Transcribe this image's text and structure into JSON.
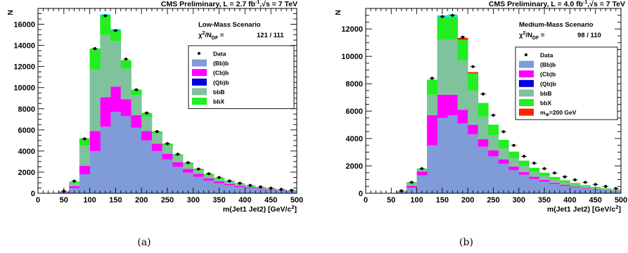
{
  "chart_data": [
    {
      "type": "bar",
      "stacked": true,
      "panel_caption": "(a)",
      "header": "CMS Preliminary, L = 2.7  fb",
      "header_sup": "-1",
      "header_rest": ",√s = 7 TeV",
      "scenario": "Low-Mass Scenario",
      "chi2_label": "χ",
      "chi2_sup": "2",
      "chi2_slash": "/N",
      "chi2_sub": "DF",
      "chi2_eq": " =",
      "chi2_value": "121 / 111",
      "ylabel": "N",
      "xlabel": "m(Jet1 Jet2) [GeV/c",
      "xlabel_sup": "2",
      "xlabel_end": "]",
      "xlim": [
        0,
        500
      ],
      "ylim": [
        0,
        17500
      ],
      "yticks": [
        0,
        2000,
        4000,
        6000,
        8000,
        10000,
        12000,
        14000,
        16000
      ],
      "ytick_labels": [
        "0",
        "2000",
        "4000",
        "6000",
        "8000",
        "10000",
        "12000",
        "14000",
        "16000"
      ],
      "xticks": [
        0,
        50,
        100,
        150,
        200,
        250,
        300,
        350,
        400,
        450,
        500
      ],
      "xtick_labels": [
        "0",
        "50",
        "100",
        "150",
        "200",
        "250",
        "300",
        "350",
        "400",
        "450",
        "500"
      ],
      "bin_edges": [
        40,
        60,
        80,
        100,
        120,
        140,
        160,
        180,
        200,
        220,
        240,
        260,
        280,
        300,
        320,
        340,
        360,
        380,
        400,
        420,
        440,
        460,
        480,
        500
      ],
      "legend_position": "top-right",
      "legend": [
        {
          "label": "Data",
          "marker": "dot",
          "color": "#000000"
        },
        {
          "label": "(Bb)b",
          "color": "#7f9bd8"
        },
        {
          "label": "(Cb)b",
          "color": "#ff00ff"
        },
        {
          "label": "(Qb)b",
          "color": "#0000dd"
        },
        {
          "label": "bbB",
          "color": "#7fc39c"
        },
        {
          "label": "bbX",
          "color": "#22ee22"
        }
      ],
      "series": [
        {
          "name": "(Bb)b",
          "color": "#7f9bd8",
          "values": [
            80,
            500,
            1800,
            4000,
            6300,
            7700,
            7300,
            6200,
            5000,
            4000,
            3200,
            2500,
            1950,
            1550,
            1200,
            950,
            750,
            600,
            480,
            380,
            300,
            230,
            170
          ]
        },
        {
          "name": "(Cb)b",
          "color": "#ff00ff",
          "values": [
            20,
            180,
            800,
            1900,
            2800,
            2400,
            1600,
            1200,
            900,
            700,
            550,
            450,
            350,
            280,
            220,
            180,
            140,
            110,
            90,
            70,
            55,
            45,
            35
          ]
        },
        {
          "name": "(Qb)b",
          "color": "#0000dd",
          "values": [
            0,
            0,
            0,
            0,
            0,
            0,
            0,
            0,
            0,
            0,
            0,
            0,
            0,
            0,
            0,
            0,
            0,
            0,
            0,
            0,
            0,
            0,
            0
          ]
        },
        {
          "name": "bbB",
          "color": "#7fc39c",
          "values": [
            50,
            280,
            1900,
            5800,
            5900,
            4300,
            2900,
            1900,
            1350,
            950,
            700,
            530,
            420,
            330,
            270,
            220,
            180,
            140,
            110,
            90,
            75,
            60,
            45
          ]
        },
        {
          "name": "bbX",
          "color": "#22ee22",
          "values": [
            30,
            140,
            700,
            2000,
            1800,
            1000,
            800,
            500,
            350,
            200,
            250,
            200,
            180,
            160,
            140,
            120,
            100,
            80,
            70,
            60,
            50,
            40,
            30
          ]
        }
      ],
      "cyan_cap": [
        0,
        0,
        0,
        0,
        150,
        150,
        0,
        0,
        0,
        0,
        0,
        0,
        0,
        0,
        0,
        0,
        0,
        0,
        0,
        0,
        0,
        0,
        0
      ],
      "data_points": {
        "name": "Data",
        "x": [
          50,
          70,
          90,
          110,
          130,
          150,
          170,
          190,
          210,
          230,
          250,
          270,
          290,
          310,
          330,
          350,
          370,
          390,
          410,
          430,
          450,
          470,
          490
        ],
        "y": [
          200,
          1150,
          5150,
          13700,
          16800,
          15400,
          12700,
          9800,
          7600,
          5850,
          4700,
          3700,
          2900,
          2300,
          1850,
          1500,
          1170,
          950,
          750,
          600,
          480,
          375,
          280
        ]
      }
    },
    {
      "type": "bar",
      "stacked": true,
      "panel_caption": "(b)",
      "header": "CMS Preliminary, L = 4.0  fb",
      "header_sup": "-1",
      "header_rest": ",√s = 7 TeV",
      "scenario": "Medium-Mass Scenario",
      "chi2_label": "χ",
      "chi2_sup": "2",
      "chi2_slash": "/N",
      "chi2_sub": "DF",
      "chi2_eq": " =",
      "chi2_value": "98 / 110",
      "ylabel": "N",
      "xlabel": "m(Jet1 Jet2) [GeV/c",
      "xlabel_sup": "2",
      "xlabel_end": "]",
      "xlim": [
        0,
        500
      ],
      "ylim": [
        0,
        13500
      ],
      "yticks": [
        0,
        2000,
        4000,
        6000,
        8000,
        10000,
        12000
      ],
      "ytick_labels": [
        "0",
        "2000",
        "4000",
        "6000",
        "8000",
        "10000",
        "12000"
      ],
      "xticks": [
        0,
        50,
        100,
        150,
        200,
        250,
        300,
        350,
        400,
        450,
        500
      ],
      "xtick_labels": [
        "0",
        "50",
        "100",
        "150",
        "200",
        "250",
        "300",
        "350",
        "400",
        "450",
        "500"
      ],
      "bin_edges": [
        60,
        80,
        100,
        120,
        140,
        160,
        180,
        200,
        220,
        240,
        260,
        280,
        300,
        320,
        340,
        360,
        380,
        400,
        420,
        440,
        460,
        480,
        500
      ],
      "legend_position": "top-right",
      "legend": [
        {
          "label": "Data",
          "marker": "dot",
          "color": "#000000"
        },
        {
          "label": "(Bb)b",
          "color": "#7f9bd8"
        },
        {
          "label": "(Cb)b",
          "color": "#ff00ff"
        },
        {
          "label": "(Qb)b",
          "color": "#0000dd"
        },
        {
          "label": "bbB",
          "color": "#7fc39c"
        },
        {
          "label": "bbX",
          "color": "#22ee22"
        },
        {
          "label": "m",
          "label_sub": "Φ",
          "label_rest": "=200 GeV",
          "color": "#ff2200"
        }
      ],
      "series": [
        {
          "name": "(Bb)b",
          "color": "#7f9bd8",
          "values": [
            100,
            400,
            1300,
            3500,
            5500,
            5700,
            5100,
            4300,
            3400,
            2700,
            2150,
            1700,
            1350,
            1050,
            850,
            680,
            540,
            430,
            340,
            270,
            210,
            160
          ]
        },
        {
          "name": "(Cb)b",
          "color": "#ff00ff",
          "values": [
            20,
            150,
            300,
            2200,
            1700,
            1500,
            1000,
            700,
            550,
            430,
            330,
            260,
            200,
            160,
            130,
            100,
            80,
            65,
            50,
            40,
            30,
            25
          ]
        },
        {
          "name": "(Qb)b",
          "color": "#0000dd",
          "values": [
            0,
            0,
            0,
            0,
            0,
            0,
            0,
            0,
            0,
            0,
            0,
            0,
            0,
            0,
            0,
            0,
            0,
            0,
            0,
            0,
            0,
            0
          ]
        },
        {
          "name": "bbB",
          "color": "#7fc39c",
          "values": [
            30,
            150,
            100,
            1500,
            4000,
            4000,
            3600,
            2500,
            1650,
            1100,
            800,
            600,
            450,
            350,
            280,
            220,
            170,
            135,
            105,
            85,
            65,
            50
          ]
        },
        {
          "name": "bbX",
          "color": "#22ee22",
          "values": [
            20,
            100,
            100,
            1100,
            1650,
            1700,
            1500,
            1250,
            1000,
            780,
            620,
            480,
            380,
            300,
            240,
            190,
            150,
            120,
            95,
            75,
            60,
            45
          ]
        },
        {
          "name": "m_Φ=200 GeV",
          "color": "#ff2200",
          "values": [
            0,
            0,
            0,
            0,
            0,
            0,
            150,
            100,
            0,
            0,
            0,
            0,
            0,
            0,
            0,
            0,
            0,
            0,
            0,
            0,
            0,
            0
          ]
        }
      ],
      "cyan_cap": [
        0,
        0,
        0,
        0,
        150,
        150,
        0,
        0,
        0,
        0,
        0,
        0,
        0,
        0,
        0,
        0,
        0,
        0,
        0,
        0,
        0,
        0
      ],
      "data_points": {
        "name": "Data",
        "x": [
          70,
          90,
          110,
          130,
          150,
          170,
          190,
          210,
          230,
          250,
          270,
          290,
          310,
          330,
          350,
          370,
          390,
          410,
          430,
          450,
          470,
          490
        ],
        "y": [
          180,
          800,
          1800,
          8400,
          12900,
          13000,
          11400,
          9250,
          7250,
          5700,
          4500,
          3500,
          2700,
          2200,
          1800,
          1480,
          1200,
          980,
          800,
          640,
          500,
          350
        ]
      }
    }
  ]
}
